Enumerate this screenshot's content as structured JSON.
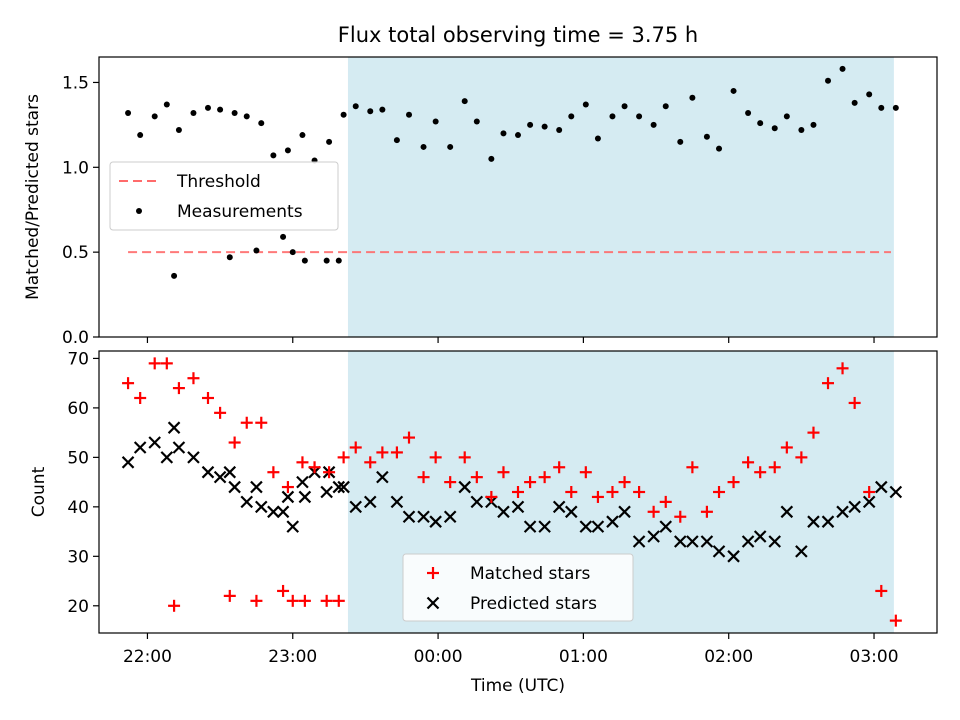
{
  "title": "Flux total observing time = 3.75 h",
  "colors": {
    "observing_band": "#add8e6",
    "threshold": "#ff6b6b",
    "matched": "#ff0000",
    "predicted": "#000000",
    "measurement": "#000000"
  },
  "chart_data": [
    {
      "type": "scatter",
      "ylabel": "Matched/Predicted stars",
      "xlabel": "",
      "ylim": [
        0,
        1.65
      ],
      "yticks": [
        "0.0",
        "0.5",
        "1.0",
        "1.5"
      ],
      "x_time_range": [
        "21:40",
        "03:26"
      ],
      "observing_window": [
        "23:23",
        "03:08"
      ],
      "legend": {
        "placement": "center-left",
        "entries": [
          {
            "name": "Threshold",
            "style": "dashed-line"
          },
          {
            "name": "Measurements",
            "style": "dot"
          }
        ]
      },
      "threshold": {
        "value": 0.5,
        "x_start": "21:52",
        "x_end": "03:07"
      },
      "series": [
        {
          "name": "Measurements",
          "x": [
            "21:52",
            "21:57",
            "22:03",
            "22:08",
            "22:13",
            "22:19",
            "22:25",
            "22:30",
            "22:36",
            "22:41",
            "22:47",
            "22:52",
            "22:58",
            "23:04",
            "23:09",
            "23:15",
            "23:21",
            "23:26",
            "23:32",
            "23:37",
            "23:43",
            "23:48",
            "23:54",
            "23:59",
            "00:05",
            "00:11",
            "00:16",
            "00:22",
            "00:27",
            "00:33",
            "00:38",
            "00:44",
            "00:50",
            "00:55",
            "01:01",
            "01:06",
            "01:12",
            "01:17",
            "01:23",
            "01:29",
            "01:34",
            "01:40",
            "01:45",
            "01:51",
            "01:56",
            "02:02",
            "02:08",
            "02:13",
            "02:19",
            "02:24",
            "02:30",
            "02:35",
            "02:41",
            "02:47",
            "02:52",
            "02:58",
            "03:03",
            "03:09",
            "22:11",
            "22:34",
            "22:45",
            "22:56",
            "23:00",
            "23:05",
            "23:14",
            "23:19"
          ],
          "y": [
            1.32,
            1.19,
            1.3,
            1.37,
            1.22,
            1.32,
            1.35,
            1.34,
            1.32,
            1.3,
            1.26,
            1.07,
            1.1,
            1.19,
            1.04,
            1.15,
            1.31,
            1.36,
            1.33,
            1.34,
            1.16,
            1.31,
            1.12,
            1.27,
            1.12,
            1.39,
            1.27,
            1.05,
            1.2,
            1.19,
            1.25,
            1.24,
            1.22,
            1.3,
            1.37,
            1.17,
            1.3,
            1.36,
            1.3,
            1.25,
            1.36,
            1.15,
            1.41,
            1.18,
            1.11,
            1.45,
            1.32,
            1.26,
            1.23,
            1.3,
            1.22,
            1.25,
            1.51,
            1.58,
            1.38,
            1.43,
            1.35,
            1.35,
            0.36,
            0.47,
            0.51,
            0.59,
            0.5,
            0.45,
            0.45,
            0.45
          ]
        }
      ]
    },
    {
      "type": "scatter",
      "ylabel": "Count",
      "xlabel": "Time (UTC)",
      "ylim": [
        14.5,
        71.5
      ],
      "yticks": [
        "20",
        "30",
        "40",
        "50",
        "60",
        "70"
      ],
      "xticks": [
        "22:00",
        "23:00",
        "00:00",
        "01:00",
        "02:00",
        "03:00"
      ],
      "x_time_range": [
        "21:40",
        "03:26"
      ],
      "observing_window": [
        "23:23",
        "03:08"
      ],
      "legend": {
        "placement": "bottom-center",
        "entries": [
          {
            "name": "Matched stars",
            "style": "plus"
          },
          {
            "name": "Predicted stars",
            "style": "x"
          }
        ]
      },
      "series": [
        {
          "name": "Matched stars",
          "x": [
            "21:52",
            "21:57",
            "22:03",
            "22:08",
            "22:13",
            "22:19",
            "22:25",
            "22:30",
            "22:36",
            "22:41",
            "22:47",
            "22:52",
            "22:58",
            "23:04",
            "23:09",
            "23:15",
            "23:21",
            "23:26",
            "23:32",
            "23:37",
            "23:43",
            "23:48",
            "23:54",
            "23:59",
            "00:05",
            "00:11",
            "00:16",
            "00:22",
            "00:27",
            "00:33",
            "00:38",
            "00:44",
            "00:50",
            "00:55",
            "01:01",
            "01:06",
            "01:12",
            "01:17",
            "01:23",
            "01:29",
            "01:34",
            "01:40",
            "01:45",
            "01:51",
            "01:56",
            "02:02",
            "02:08",
            "02:13",
            "02:19",
            "02:24",
            "02:30",
            "02:35",
            "02:41",
            "02:47",
            "02:52",
            "02:58",
            "03:03",
            "03:09",
            "22:11",
            "22:34",
            "22:45",
            "22:56",
            "23:00",
            "23:05",
            "23:14",
            "23:19"
          ],
          "y": [
            65,
            62,
            69,
            69,
            64,
            66,
            62,
            59,
            53,
            57,
            57,
            47,
            44,
            49,
            48,
            47,
            50,
            52,
            49,
            51,
            51,
            54,
            46,
            50,
            45,
            50,
            46,
            42,
            47,
            43,
            45,
            46,
            48,
            43,
            47,
            42,
            43,
            45,
            43,
            39,
            41,
            38,
            48,
            39,
            43,
            45,
            49,
            47,
            48,
            52,
            50,
            55,
            65,
            68,
            61,
            43,
            23,
            17,
            20,
            22,
            21,
            23,
            21,
            21,
            21,
            21
          ]
        },
        {
          "name": "Predicted stars",
          "x": [
            "21:52",
            "21:57",
            "22:03",
            "22:08",
            "22:13",
            "22:19",
            "22:25",
            "22:30",
            "22:36",
            "22:41",
            "22:47",
            "22:52",
            "22:58",
            "23:04",
            "23:09",
            "23:15",
            "23:21",
            "23:26",
            "23:32",
            "23:37",
            "23:43",
            "23:48",
            "23:54",
            "23:59",
            "00:05",
            "00:11",
            "00:16",
            "00:22",
            "00:27",
            "00:33",
            "00:38",
            "00:44",
            "00:50",
            "00:55",
            "01:01",
            "01:06",
            "01:12",
            "01:17",
            "01:23",
            "01:29",
            "01:34",
            "01:40",
            "01:45",
            "01:51",
            "01:56",
            "02:02",
            "02:08",
            "02:13",
            "02:19",
            "02:24",
            "02:30",
            "02:35",
            "02:41",
            "02:47",
            "02:52",
            "02:58",
            "03:03",
            "03:09",
            "22:11",
            "22:34",
            "22:45",
            "22:56",
            "23:00",
            "23:05",
            "23:14",
            "23:19"
          ],
          "y": [
            49,
            52,
            53,
            50,
            52,
            50,
            47,
            46,
            44,
            41,
            40,
            39,
            42,
            45,
            47,
            47,
            44,
            40,
            41,
            46,
            41,
            38,
            38,
            37,
            38,
            44,
            41,
            41,
            39,
            40,
            36,
            36,
            40,
            39,
            36,
            36,
            37,
            39,
            33,
            34,
            36,
            33,
            33,
            33,
            31,
            30,
            33,
            34,
            33,
            39,
            31,
            37,
            37,
            39,
            40,
            41,
            44,
            43,
            56,
            47,
            44,
            39,
            36,
            42,
            43,
            44
          ]
        }
      ]
    }
  ]
}
